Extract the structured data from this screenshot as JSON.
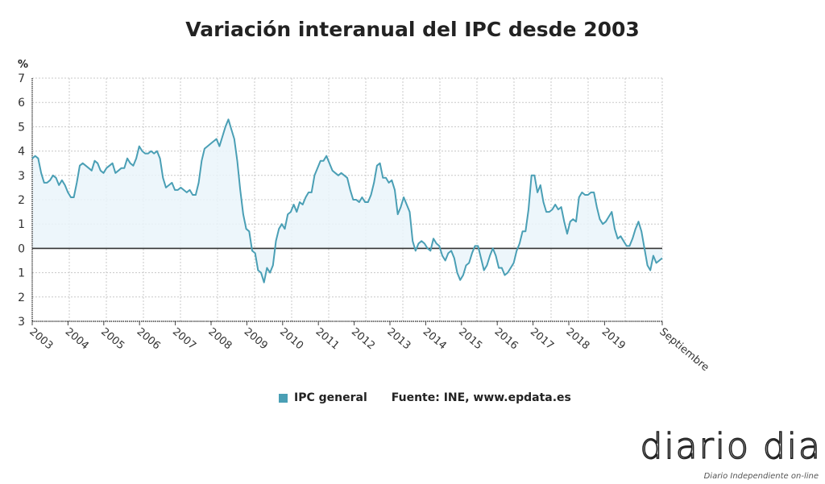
{
  "chart_data": {
    "type": "area",
    "title": "Variación interanual del IPC desde 2003",
    "ylabel": "%",
    "ylim": [
      -3,
      7
    ],
    "y_ticks": [
      7,
      6,
      5,
      4,
      3,
      2,
      1,
      0,
      -1,
      -2,
      -3
    ],
    "y_tick_labels": [
      "7",
      "6",
      "5",
      "4",
      "3",
      "2",
      "1",
      "0",
      "1",
      "2",
      "3"
    ],
    "x_tick_labels": [
      "2003",
      "2004",
      "2005",
      "2006",
      "2007",
      "2008",
      "2009",
      "2010",
      "2011",
      "2012",
      "2013",
      "2014",
      "2015",
      "2016",
      "2017",
      "2018",
      "2019",
      "Septiembre"
    ],
    "x_start": "2003-01",
    "x_end": "2020-09",
    "frequency": "monthly",
    "grid": true,
    "legend_position": "bottom",
    "series": [
      {
        "name": "IPC general",
        "color": "#4a9fb5",
        "values": [
          3.7,
          3.8,
          3.7,
          3.1,
          2.7,
          2.7,
          2.8,
          3.0,
          2.9,
          2.6,
          2.8,
          2.6,
          2.3,
          2.1,
          2.1,
          2.7,
          3.4,
          3.5,
          3.4,
          3.3,
          3.2,
          3.6,
          3.5,
          3.2,
          3.1,
          3.3,
          3.4,
          3.5,
          3.1,
          3.2,
          3.3,
          3.3,
          3.7,
          3.5,
          3.4,
          3.7,
          4.2,
          4.0,
          3.9,
          3.9,
          4.0,
          3.9,
          4.0,
          3.7,
          2.9,
          2.5,
          2.6,
          2.7,
          2.4,
          2.4,
          2.5,
          2.4,
          2.3,
          2.4,
          2.2,
          2.2,
          2.7,
          3.6,
          4.1,
          4.2,
          4.3,
          4.4,
          4.5,
          4.2,
          4.6,
          5.0,
          5.3,
          4.9,
          4.5,
          3.6,
          2.4,
          1.4,
          0.8,
          0.7,
          -0.1,
          -0.2,
          -0.9,
          -1.0,
          -1.4,
          -0.8,
          -1.0,
          -0.7,
          0.3,
          0.8,
          1.0,
          0.8,
          1.4,
          1.5,
          1.8,
          1.5,
          1.9,
          1.8,
          2.1,
          2.3,
          2.3,
          3.0,
          3.3,
          3.6,
          3.6,
          3.8,
          3.5,
          3.2,
          3.1,
          3.0,
          3.1,
          3.0,
          2.9,
          2.4,
          2.0,
          2.0,
          1.9,
          2.1,
          1.9,
          1.9,
          2.2,
          2.7,
          3.4,
          3.5,
          2.9,
          2.9,
          2.7,
          2.8,
          2.4,
          1.4,
          1.7,
          2.1,
          1.8,
          1.5,
          0.3,
          -0.1,
          0.2,
          0.3,
          0.2,
          0.0,
          -0.1,
          0.4,
          0.2,
          0.1,
          -0.3,
          -0.5,
          -0.2,
          -0.1,
          -0.4,
          -1.0,
          -1.3,
          -1.1,
          -0.7,
          -0.6,
          -0.2,
          0.1,
          0.1,
          -0.4,
          -0.9,
          -0.7,
          -0.3,
          0.0,
          -0.3,
          -0.8,
          -0.8,
          -1.1,
          -1.0,
          -0.8,
          -0.6,
          -0.1,
          0.2,
          0.7,
          0.7,
          1.6,
          3.0,
          3.0,
          2.3,
          2.6,
          1.9,
          1.5,
          1.5,
          1.6,
          1.8,
          1.6,
          1.7,
          1.1,
          0.6,
          1.1,
          1.2,
          1.1,
          2.1,
          2.3,
          2.2,
          2.2,
          2.3,
          2.3,
          1.7,
          1.2,
          1.0,
          1.1,
          1.3,
          1.5,
          0.8,
          0.4,
          0.5,
          0.3,
          0.1,
          0.1,
          0.4,
          0.8,
          1.1,
          0.7,
          0.0,
          -0.7,
          -0.9,
          -0.3,
          -0.6,
          -0.5,
          -0.4
        ]
      }
    ]
  },
  "legend": {
    "series_label": "IPC general",
    "source": "Fuente: INE, www.epdata.es"
  },
  "logo": {
    "name": "diario dia",
    "tagline": "Diario Independiente on-line"
  }
}
